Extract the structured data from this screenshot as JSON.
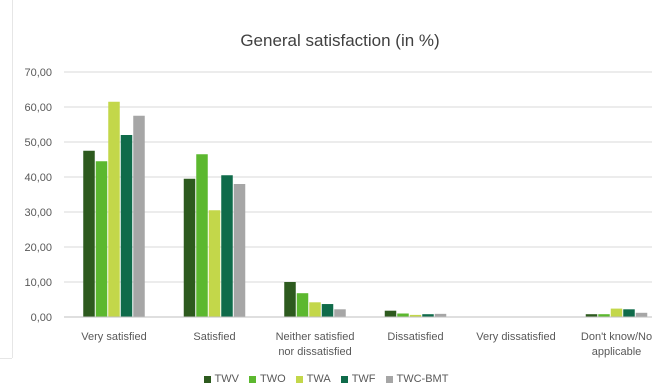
{
  "chart_data": {
    "type": "bar",
    "title": "General satisfaction (in %)",
    "xlabel": "",
    "ylabel": "",
    "ylim": [
      0,
      70
    ],
    "yticks": [
      0,
      10,
      20,
      30,
      40,
      50,
      60,
      70
    ],
    "ytick_labels": [
      "0,00",
      "10,00",
      "20,00",
      "30,00",
      "40,00",
      "50,00",
      "60,00",
      "70,00"
    ],
    "grid": true,
    "legend_position": "bottom",
    "categories": [
      "Very satisfied",
      "Satisfied",
      "Neither satisfied nor dissatisfied",
      "Dissatisfied",
      "Very dissatisfied",
      "Don't know/No applicable"
    ],
    "category_lines": [
      [
        "Very satisfied"
      ],
      [
        "Satisfied"
      ],
      [
        "Neither satisfied",
        "nor dissatisfied"
      ],
      [
        "Dissatisfied"
      ],
      [
        "Very dissatisfied"
      ],
      [
        "Don't know/No",
        "applicable"
      ]
    ],
    "series": [
      {
        "name": "TWV",
        "color": "#2d5a1e",
        "values": [
          47.5,
          39.5,
          10.0,
          1.8,
          0.0,
          0.8
        ]
      },
      {
        "name": "TWO",
        "color": "#5cb82f",
        "values": [
          44.5,
          46.5,
          6.8,
          1.0,
          0.0,
          0.8
        ]
      },
      {
        "name": "TWA",
        "color": "#c3d74a",
        "values": [
          61.5,
          30.5,
          4.2,
          0.6,
          0.0,
          2.4
        ]
      },
      {
        "name": "TWF",
        "color": "#0f6b4a",
        "values": [
          52.0,
          40.5,
          3.7,
          0.8,
          0.0,
          2.2
        ]
      },
      {
        "name": "TWC-BMT",
        "color": "#a6a6a6",
        "values": [
          57.5,
          38.0,
          2.2,
          0.9,
          0.0,
          1.2
        ]
      }
    ]
  }
}
